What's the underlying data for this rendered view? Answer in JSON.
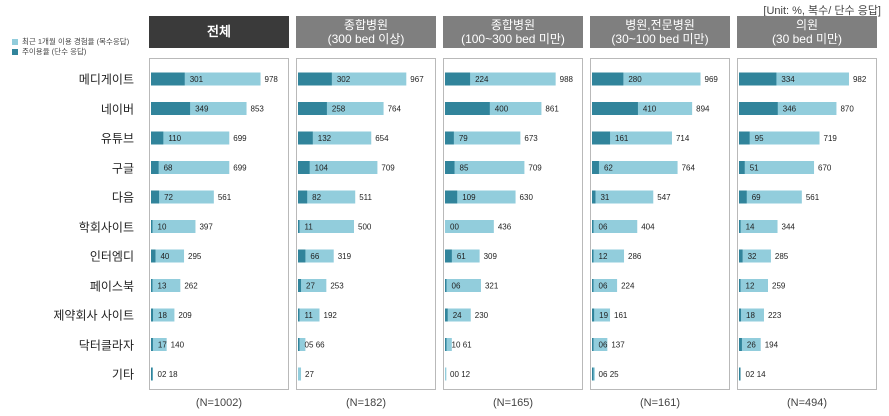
{
  "unit_note": "[Unit: %, 복수/ 단수 응답]",
  "legend": [
    {
      "label": "최근 1개월 이용 경험율 (복수응답)",
      "color": "#92cddc"
    },
    {
      "label": "주이용율 (단수 응답)",
      "color": "#31849b"
    }
  ],
  "chart_data": {
    "type": "bar",
    "categories": [
      "메디게이트",
      "네이버",
      "유튜브",
      "구글",
      "다음",
      "학회사이트",
      "인터엠디",
      "페이스북",
      "제약회사 사이트",
      "닥터클라자",
      "기타"
    ],
    "panels": [
      {
        "title_lines": [
          "전체"
        ],
        "n_label": "(N=1002)",
        "series": [
          {
            "name": "최근 1개월 이용 경험율 (복수응답)",
            "values": [
              97.8,
              85.3,
              69.9,
              69.9,
              56.1,
              39.7,
              29.5,
              26.2,
              20.9,
              14.0,
              1.8
            ]
          },
          {
            "name": "주이용율 (단수 응답)",
            "values": [
              30.1,
              34.9,
              11.0,
              6.8,
              7.2,
              1.0,
              4.0,
              1.3,
              1.8,
              1.7,
              0.2
            ]
          }
        ]
      },
      {
        "title_lines": [
          "종합병원",
          "(300 bed 이상)"
        ],
        "n_label": "(N=182)",
        "series": [
          {
            "name": "최근 1개월 이용 경험율 (복수응답)",
            "values": [
              96.7,
              76.4,
              65.4,
              70.9,
              51.1,
              50.0,
              31.9,
              25.3,
              19.2,
              6.6,
              2.7
            ]
          },
          {
            "name": "주이용율 (단수 응답)",
            "values": [
              30.2,
              25.8,
              13.2,
              10.4,
              8.2,
              1.1,
              6.6,
              2.7,
              1.1,
              0.5,
              null
            ]
          }
        ]
      },
      {
        "title_lines": [
          "종합병원",
          "(100~300 bed 미만)"
        ],
        "n_label": "(N=165)",
        "series": [
          {
            "name": "최근 1개월 이용 경험율 (복수응답)",
            "values": [
              98.8,
              86.1,
              67.3,
              70.9,
              63.0,
              43.6,
              30.9,
              32.1,
              23.0,
              6.1,
              1.2
            ]
          },
          {
            "name": "주이용율 (단수 응답)",
            "values": [
              22.4,
              40.0,
              7.9,
              8.5,
              10.9,
              0.0,
              6.1,
              0.6,
              2.4,
              1.0,
              0.0
            ]
          }
        ]
      },
      {
        "title_lines": [
          "병원,전문병원",
          "(30~100 bed 미만)"
        ],
        "n_label": "(N=161)",
        "series": [
          {
            "name": "최근 1개월 이용 경험율 (복수응답)",
            "values": [
              96.9,
              89.4,
              71.4,
              76.4,
              54.7,
              40.4,
              28.6,
              22.4,
              16.1,
              13.7,
              2.5
            ]
          },
          {
            "name": "주이용율 (단수 응답)",
            "values": [
              28.0,
              41.0,
              16.1,
              6.2,
              3.1,
              0.6,
              1.2,
              0.6,
              1.9,
              0.6,
              0.6
            ]
          }
        ]
      },
      {
        "title_lines": [
          "의원",
          "(30 bed 미만)"
        ],
        "n_label": "(N=494)",
        "series": [
          {
            "name": "최근 1개월 이용 경험율 (복수응답)",
            "values": [
              98.2,
              87.0,
              71.9,
              67.0,
              56.1,
              34.4,
              28.5,
              25.9,
              22.3,
              19.4,
              1.4
            ]
          },
          {
            "name": "주이용율 (단수 응답)",
            "values": [
              33.4,
              34.6,
              9.5,
              5.1,
              6.9,
              1.4,
              3.2,
              1.2,
              1.8,
              2.6,
              0.2
            ]
          }
        ]
      }
    ],
    "xlim": [
      0,
      100
    ]
  }
}
